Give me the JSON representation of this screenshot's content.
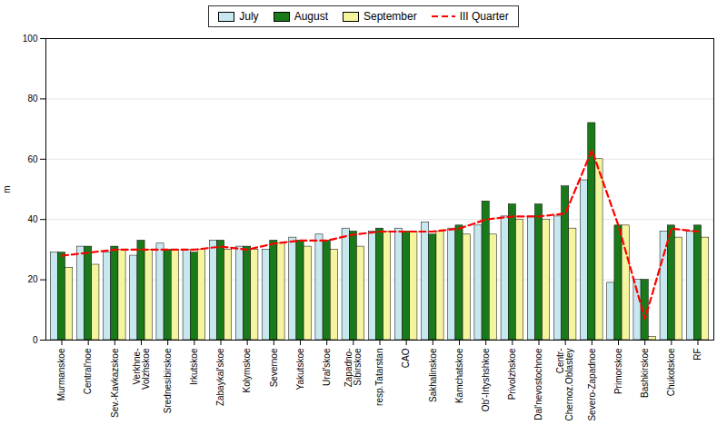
{
  "chart_data": {
    "type": "bar",
    "categories": [
      "Murmanskoe",
      "Central'noe",
      "Sev.-Kavkazskoe",
      "Verkhne-\nVolzhskoe",
      "Srednesibirskoe",
      "Irkutskoe",
      "Zabaykal'skoe",
      "Kolymskoe",
      "Severnoe",
      "Yakutskoe",
      "Ural'skoe",
      "Zapadno-\nSibirskoe",
      "resp.Tatarstan",
      "CAO",
      "Sakhalinskoe",
      "Kamchatskoe",
      "Ob'-Irtyshshkoe",
      "Privolzhskoe",
      "Dal'nevostochnoe",
      "Centr-\nChernoz.Oblastey",
      "Severo-Zapadnoe",
      "Primorskoe",
      "Bashkirskoe",
      "Chukotskoe",
      "RF"
    ],
    "series": [
      {
        "name": "July",
        "type": "bar",
        "color": "#c8e8f0",
        "values": [
          29,
          31,
          29,
          28,
          32,
          30,
          33,
          31,
          30,
          34,
          35,
          37,
          36,
          37,
          39,
          37,
          38,
          41,
          41,
          41,
          53,
          19,
          20,
          36,
          36
        ]
      },
      {
        "name": "August",
        "type": "bar",
        "color": "#1a7a1a",
        "values": [
          29,
          31,
          31,
          33,
          30,
          29,
          33,
          31,
          33,
          33,
          33,
          36,
          37,
          36,
          35,
          38,
          46,
          45,
          45,
          51,
          72,
          38,
          20,
          38,
          38
        ]
      },
      {
        "name": "September",
        "type": "bar",
        "color": "#f5f5a0",
        "values": [
          24,
          25,
          30,
          30,
          30,
          30,
          30,
          30,
          32,
          31,
          30,
          31,
          36,
          36,
          36,
          35,
          35,
          40,
          40,
          37,
          60,
          38,
          1,
          34,
          34
        ]
      },
      {
        "name": "III Quarter",
        "type": "line",
        "color": "#ff0000",
        "line_style": "dashed",
        "values": [
          28,
          29,
          30,
          30,
          30,
          30,
          31,
          30,
          32,
          33,
          33,
          35,
          36,
          36,
          36,
          37,
          40,
          41,
          41,
          42,
          63,
          38,
          7,
          37,
          36
        ]
      }
    ],
    "ylabel": "m",
    "ylim": [
      0,
      100
    ],
    "yticks": [
      0,
      20,
      40,
      60,
      80,
      100
    ],
    "grid": true,
    "legend": "top"
  }
}
